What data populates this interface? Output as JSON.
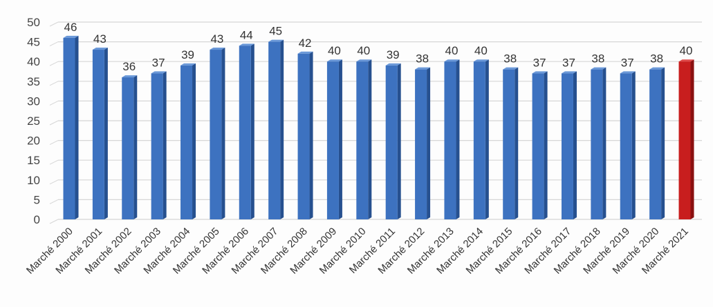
{
  "chart_data": {
    "type": "bar",
    "title": "",
    "xlabel": "",
    "ylabel": "",
    "ylim": [
      0,
      50
    ],
    "yticks": [
      0,
      5,
      10,
      15,
      20,
      25,
      30,
      35,
      40,
      45,
      50
    ],
    "grid": true,
    "style": "3d-column",
    "categories": [
      "Marché 2000",
      "Marché 2001",
      "Marché 2002",
      "Marché 2003",
      "Marché 2004",
      "Marché 2005",
      "Marché 2006",
      "Marché 2007",
      "Marché 2008",
      "Marché 2009",
      "Marché 2010",
      "Marché 2011",
      "Marché 2012",
      "Marché 2013",
      "Marché 2014",
      "Marché 2015",
      "Marché 2016",
      "Marché 2017",
      "Marché 2018",
      "Marché 2019",
      "Marché 2020",
      "Marché 2021"
    ],
    "values": [
      46,
      43,
      36,
      37,
      39,
      43,
      44,
      45,
      42,
      40,
      40,
      39,
      38,
      40,
      40,
      38,
      37,
      37,
      38,
      37,
      38,
      40
    ],
    "colors": {
      "default": "#3d72c0",
      "highlight": "#c81e1e",
      "highlight_label": "#c0392b"
    },
    "highlight_index": 21
  }
}
